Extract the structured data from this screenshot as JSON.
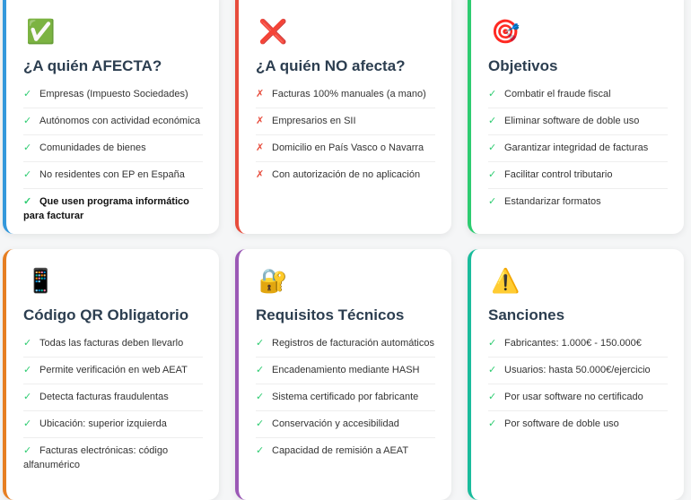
{
  "colors": {
    "check": "#2ecc71",
    "cross": "#e74c3c"
  },
  "cards": [
    {
      "icon": "check-box-icon",
      "glyph": "✅",
      "title": "¿A quién AFECTA?",
      "border": "#3498db",
      "marker": "✓",
      "items": [
        "Empresas (Impuesto Sociedades)",
        "Autónomos con actividad económica",
        "Comunidades de bienes",
        "No residentes con EP en España",
        "Que usen programa informático para facturar"
      ]
    },
    {
      "icon": "cross-icon",
      "glyph": "❌",
      "title": "¿A quién NO afecta?",
      "border": "#e74c3c",
      "marker": "✗",
      "items": [
        "Facturas 100% manuales (a mano)",
        "Empresarios en SII",
        "Domicilio en País Vasco o Navarra",
        "Con autorización de no aplicación"
      ]
    },
    {
      "icon": "target-icon",
      "glyph": "🎯",
      "title": "Objetivos",
      "border": "#2ecc71",
      "marker": "✓",
      "items": [
        "Combatir el fraude fiscal",
        "Eliminar software de doble uso",
        "Garantizar integridad de facturas",
        "Facilitar control tributario",
        "Estandarizar formatos"
      ]
    },
    {
      "icon": "qr-icon",
      "glyph": "📱",
      "title": "Código QR Obligatorio",
      "border": "#e67e22",
      "marker": "✓",
      "items": [
        "Todas las facturas deben llevarlo",
        "Permite verificación en web AEAT",
        "Detecta facturas fraudulentas",
        "Ubicación: superior izquierda",
        "Facturas electrónicas: código alfanumérico"
      ]
    },
    {
      "icon": "lock-key-icon",
      "glyph": "🔐",
      "title": "Requisitos Técnicos",
      "border": "#9b59b6",
      "marker": "✓",
      "items": [
        "Registros de facturación automáticos",
        "Encadenamiento mediante HASH",
        "Sistema certificado por fabricante",
        "Conservación y accesibilidad",
        "Capacidad de remisión a AEAT"
      ]
    },
    {
      "icon": "warning-icon",
      "glyph": "⚠️",
      "title": "Sanciones",
      "border": "#1abc9c",
      "marker": "✓",
      "items": [
        "Fabricantes: 1.000€ - 150.000€",
        "Usuarios: hasta 50.000€/ejercicio",
        "Por usar software no certificado",
        "Por software de doble uso"
      ]
    }
  ]
}
